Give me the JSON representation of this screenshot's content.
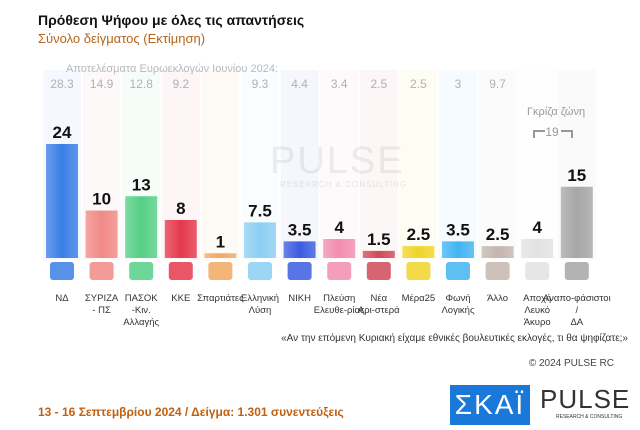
{
  "header": {
    "title": "Πρόθεση Ψήφου με όλες τις απαντήσεις",
    "subtitle": "Σύνολο δείγματος   (Εκτίμηση)"
  },
  "euro_label": "Αποτελέσματα Ευρωεκλογών Ιουνίου 2024:",
  "gray_zone": {
    "label": "Γκρίζα ζώνη",
    "value": "19"
  },
  "watermark": {
    "text": "PULSE",
    "sub": "RESEARCH & CONSULTING"
  },
  "question": "«Αν την επόμενη Κυριακή είχαμε εθνικές βουλευτικές εκλογές, τι θα ψηφίζατε;»",
  "copyright": "© 2024 PULSE RC",
  "footer": "13 - 16 Σεπτεμβρίου 2024  /  Δείγμα:  1.301 συνεντεύξεις",
  "logos": {
    "skai": "ΣΚΑΪ",
    "pulse": "PULSE",
    "pulse_sub": "RESEARCH & CONSULTING"
  },
  "chart_data": {
    "type": "bar",
    "title": "Πρόθεση Ψήφου με όλες τις απαντήσεις",
    "categories": [
      "ΝΔ",
      "ΣΥΡΙΖΑ - ΠΣ",
      "ΠΑΣΟΚ -Κιν. Αλλαγής",
      "ΚΚΕ",
      "Σπαρτιάτες",
      "Ελληνική Λύση",
      "ΝΙΚΗ",
      "Πλεύση Ελευθε-ρίας",
      "Νέα Αρι-στερά",
      "Μέρα25",
      "Φωνή Λογικής",
      "Άλλο",
      "Αποχή Λευκό Άκυρο",
      "Αναπο-φάσιστοι / ΔΑ"
    ],
    "values": [
      24,
      10,
      13,
      8,
      1,
      7.5,
      3.5,
      4,
      1.5,
      2.5,
      3.5,
      2.5,
      4,
      15
    ],
    "labels": [
      "24",
      "10",
      "13",
      "8",
      "1",
      "7.5",
      "3.5",
      "4",
      "1.5",
      "2.5",
      "3.5",
      "2.5",
      "4",
      "15"
    ],
    "euro_2024": [
      "28.3",
      "14.9",
      "12.8",
      "9.2",
      "",
      "9.3",
      "4.4",
      "3.4",
      "2.5",
      "2.5",
      "3",
      "9.7",
      "",
      ""
    ],
    "colors": [
      "#3a7ee6",
      "#f08a86",
      "#55cf86",
      "#e5384c",
      "#f2a860",
      "#8ccff2",
      "#3c5ce0",
      "#f38db0",
      "#d04a58",
      "#f0d428",
      "#42b4f2",
      "#c4b6ae",
      "#e2e2e2",
      "#a6a6a6"
    ],
    "ylim": [
      0,
      28
    ]
  }
}
